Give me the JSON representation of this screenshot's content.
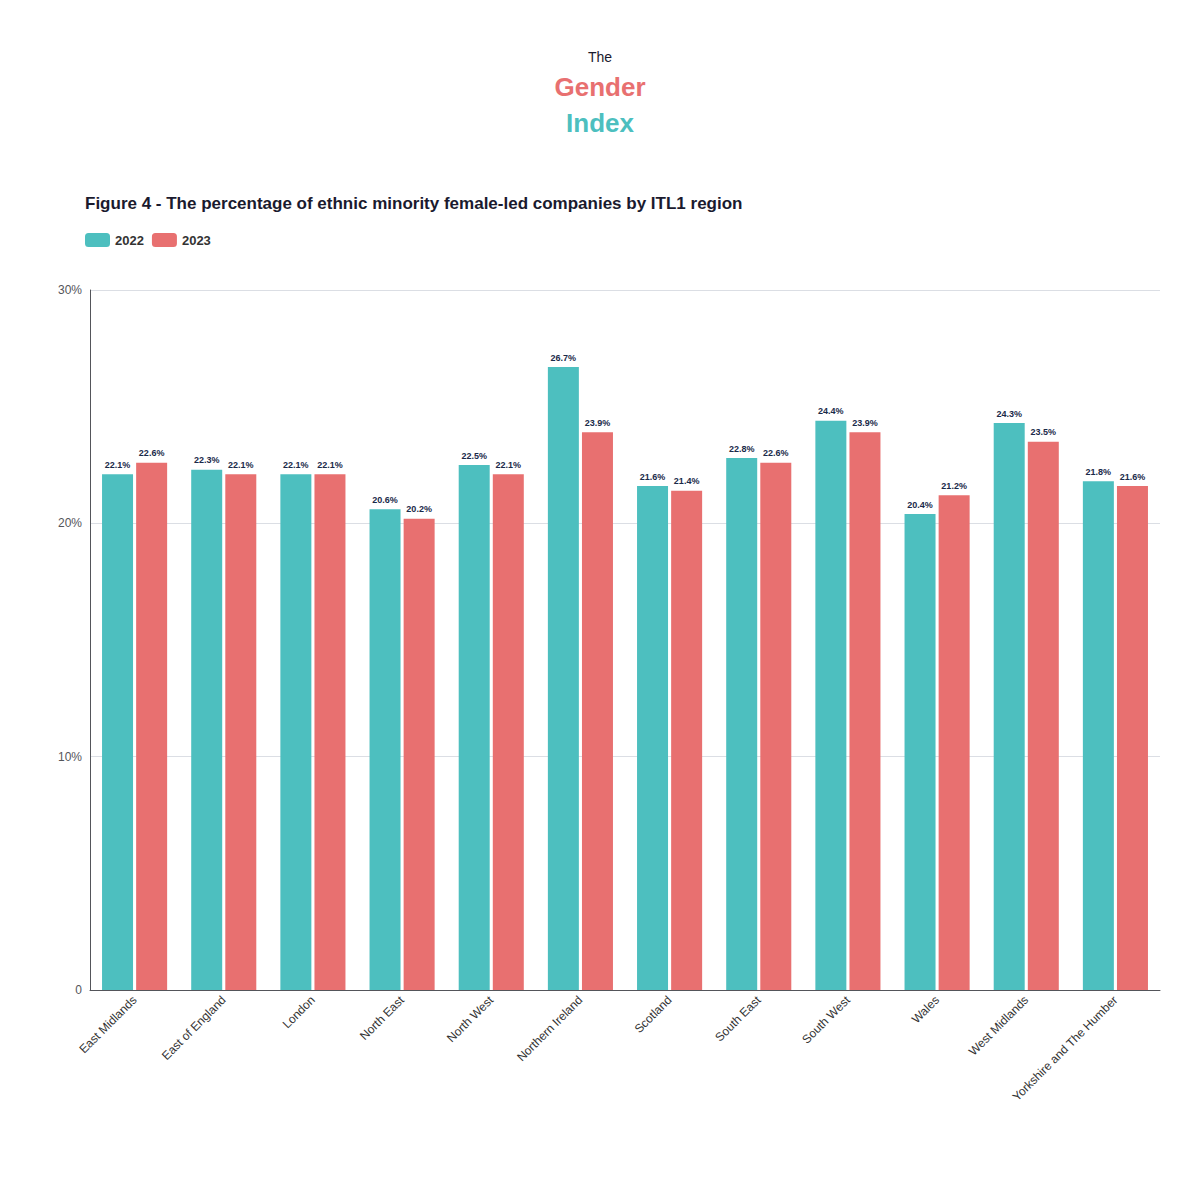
{
  "chart_data": {
    "type": "bar",
    "title": "Figure 4 - The percentage of ethnic minority female-led companies by ITL1 region",
    "annotations": [
      "The",
      "Gender",
      "Index"
    ],
    "categories": [
      "East Midlands",
      "East of England",
      "London",
      "North East",
      "North West",
      "Northern Ireland",
      "Scotland",
      "South East",
      "South West",
      "Wales",
      "West Midlands",
      "Yorkshire and The Humber"
    ],
    "series": [
      {
        "name": "2022",
        "color": "#4DBFBF",
        "values": [
          22.1,
          22.3,
          22.1,
          20.6,
          22.5,
          26.7,
          21.6,
          22.8,
          24.4,
          20.4,
          24.3,
          21.8
        ],
        "value_labels": [
          "22.1%",
          "22.3%",
          "22.1%",
          "20.6%",
          "22.5%",
          "26.7%",
          "21.6%",
          "22.8%",
          "24.4%",
          "20.4%",
          "24.3%",
          "21.8%"
        ]
      },
      {
        "name": "2023",
        "color": "#E87070",
        "values": [
          22.6,
          22.1,
          22.1,
          20.2,
          22.1,
          23.9,
          21.4,
          22.6,
          23.9,
          21.2,
          23.5,
          21.6
        ],
        "value_labels": [
          "22.6%",
          "22.1%",
          "22.1%",
          "20.2%",
          "22.1%",
          "23.9%",
          "21.4%",
          "22.6%",
          "23.9%",
          "21.2%",
          "23.5%",
          "21.6%"
        ]
      }
    ],
    "ylim": [
      0,
      30
    ],
    "yticks": [
      0,
      {
        "value": 10,
        "label": "10%"
      },
      {
        "value": 20,
        "label": "20%"
      },
      {
        "value": 30,
        "label": "30%"
      }
    ],
    "grid": true,
    "legend": "upper left",
    "data_labels": true
  }
}
